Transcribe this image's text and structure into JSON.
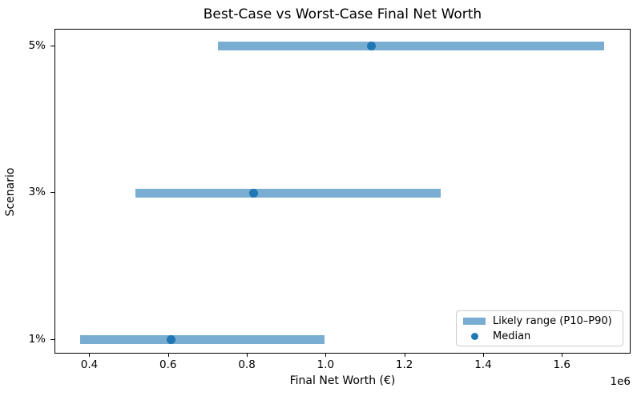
{
  "chart_data": {
    "type": "bar",
    "subtype": "horizontal_range_bar",
    "title": "Best-Case vs Worst-Case Final Net Worth",
    "xlabel": "Final Net Worth (€)",
    "ylabel": "Scenario",
    "x_scale_offset_label": "1e6",
    "categories": [
      "1%",
      "3%",
      "5%"
    ],
    "series": [
      {
        "name": "Likely range (P10–P90)",
        "type": "range_bar",
        "p10": [
          375000,
          515000,
          725000
        ],
        "p90": [
          995000,
          1290000,
          1705000
        ]
      },
      {
        "name": "Median",
        "type": "scatter",
        "values": [
          605000,
          815000,
          1115000
        ]
      }
    ],
    "xticks": {
      "values": [
        400000,
        600000,
        800000,
        1000000,
        1200000,
        1400000,
        1600000
      ],
      "labels": [
        "0.4",
        "0.6",
        "0.8",
        "1.0",
        "1.2",
        "1.4",
        "1.6"
      ]
    },
    "xlim": [
      311500,
      1774500
    ],
    "ylim": [
      -0.1,
      2.113
    ],
    "grid": false,
    "legend_position": "lower right",
    "colors": {
      "range_bar": "rgba(31,119,180,0.6)",
      "median_dot": "#1f77b4",
      "text": "#000000",
      "spine": "#000000",
      "legend_border": "#cccccc"
    }
  }
}
